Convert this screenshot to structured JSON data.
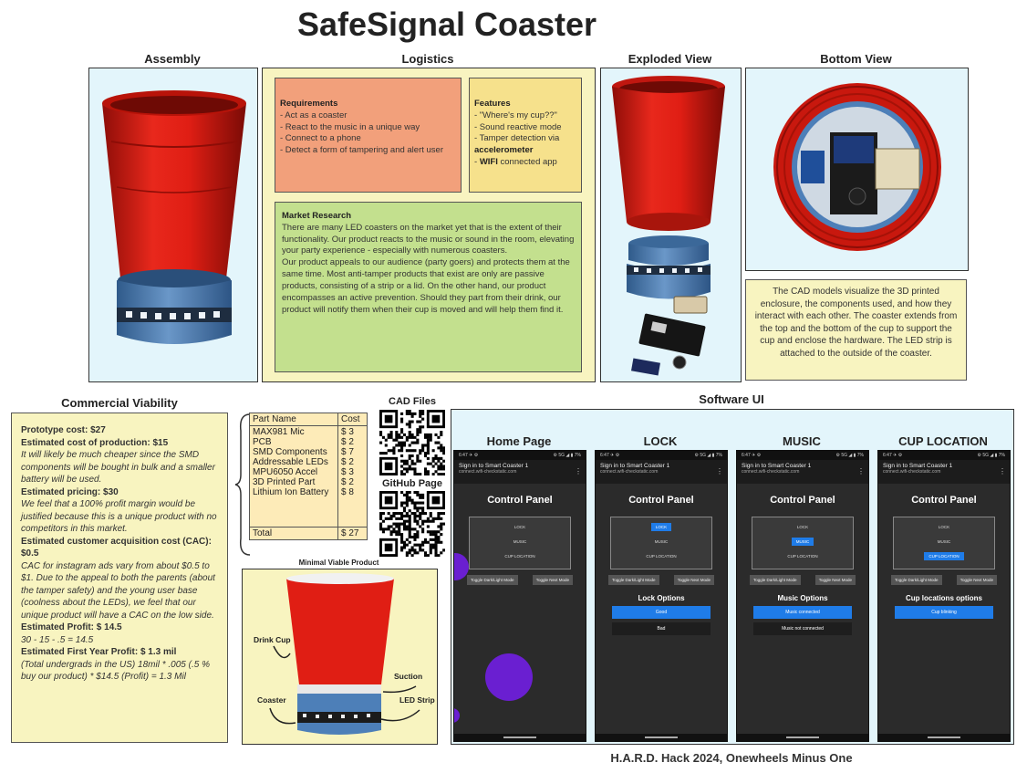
{
  "title": "SafeSignal Coaster",
  "sections": {
    "assembly": "Assembly",
    "logistics": "Logistics",
    "exploded": "Exploded View",
    "bottom": "Bottom View",
    "commercial": "Commercial Viability",
    "cad_files": "CAD Files",
    "github": "GitHub Page",
    "mvp": "Minimal Viable Product",
    "software": "Software UI"
  },
  "requirements": {
    "heading": "Requirements",
    "items": [
      "- Act as a coaster",
      "- React to the music in a unique way",
      "- Connect to a phone",
      "- Detect a form of tampering and alert user"
    ]
  },
  "features": {
    "heading": "Features",
    "line1": "- \"Where's my cup??\"",
    "line2": "- Sound reactive mode",
    "line3a": "- Tamper detection via",
    "line3b": "accelerometer",
    "line4a": "- ",
    "line4b": "WIFI",
    "line4c": " connected app"
  },
  "market": {
    "heading": "Market Research",
    "p1": "There are many LED coasters on the market yet that is the extent of their functionality. Our product reacts to the music or sound in the room, elevating your party experience - especially with numerous coasters.",
    "p2": "Our product appeals to our audience (party goers) and protects them at the same time. Most anti-tamper products that exist are only are passive products, consisting of a strip or a lid. On the other hand, our product encompasses an active prevention. Should they part from their drink, our product will notify them when their cup is moved and will help them find it."
  },
  "cad_note": "The CAD models visualize the 3D printed enclosure, the components used, and how they interact with each other. The coaster extends from the top and the bottom of the cup to support the cup and enclose the hardware. The LED strip is attached to the outside of the coaster.",
  "commercial": {
    "proto_label": "Prototype cost: $27",
    "prod_label": "Estimated cost of production: $15",
    "prod_note": "It will likely be much cheaper since the SMD components will be bought in bulk and a smaller battery will be used.",
    "price_label": "Estimated pricing:  $30",
    "price_note": "We feel that a 100% profit margin would be justified because this is a unique product with no competitors in this market.",
    "cac_label": "Estimated customer acquisition cost (CAC): $0.5",
    "cac_note": "CAC for instagram ads vary from about $0.5 to $1. Due to the appeal to both the parents (about the tamper safety) and the young user base (coolness about the LEDs), we feel that our unique product will have a CAC on the low side.",
    "profit_label": "Estimated Profit: $ 14.5",
    "profit_note": "30 - 15 - .5 = 14.5",
    "first_label": "Estimated First Year Profit: $ 1.3 mil",
    "first_note": "(Total undergrads in the US) 18mil * .005 (.5 % buy our product) * $14.5 (Profit) = 1.3 Mil"
  },
  "cost_table": {
    "header": [
      "Part Name",
      "Cost"
    ],
    "names": "MAX981 Mic\nPCB\nSMD Components\nAddressable LEDs\nMPU6050 Accel\n3D Printed Part\nLithium Ion Battery",
    "costs": "$ 3\n$ 2\n$ 7\n$ 2\n$ 3\n$ 2\n$ 8",
    "total_label": "Total",
    "total": "$ 27"
  },
  "mvp_callouts": {
    "cup": "Drink Cup",
    "suction": "Suction",
    "coaster": "Coaster",
    "led": "LED Strip"
  },
  "phones": {
    "status_left": "6:47 ✈ ⚙",
    "status_right": "⚙ 5G ◢ ▮ 7%",
    "bar_title": "Sign in to Smart Coaster 1",
    "bar_url": "connect.wifi-checkstatic.com",
    "control": "Control Panel",
    "opt_lock": "LOCK",
    "opt_music": "MUSIC",
    "opt_cup": "CUP LOCATION",
    "tog1": "Toggle Dark/Light Mode",
    "tog2": "Toggle Next Mode",
    "labels": [
      "Home Page",
      "LOCK",
      "MUSIC",
      "CUP LOCATION"
    ],
    "lock_opts": "Lock Options",
    "lock_good": "Good",
    "lock_bad": "Bad",
    "music_opts": "Music Options",
    "music_on": "Music connected",
    "music_off": "Music not connected",
    "cup_opts": "Cup locations options",
    "cup_blink": "Cup blinking"
  },
  "footer": "H.A.R.D. Hack 2024, Onewheels Minus One",
  "colors": {
    "cup_red": "#e01e14",
    "coaster_blue": "#4d7fb8",
    "note_orange": "#f2a07b",
    "note_yellow": "#f6e18c",
    "note_green": "#c3e08e",
    "note_cream": "#f8f4c0",
    "panel_blue": "#e3f5fb",
    "accent_blue": "#1f7ce8",
    "blob_purple": "#6a1fd1"
  }
}
